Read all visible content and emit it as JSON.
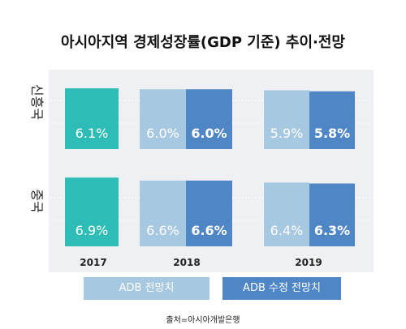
{
  "chart_data": {
    "type": "bar",
    "title": "아시아지역 경제성장률(GDP 기준) 추이·전망",
    "categories": [
      "2017",
      "2018",
      "2019"
    ],
    "panels": [
      {
        "name": "신흥국",
        "bars": [
          {
            "category": "2017",
            "series": "actual",
            "value": 6.1,
            "label": "6.1%"
          },
          {
            "category": "2018",
            "series": "ADB 전망치",
            "value": 6.0,
            "label": "6.0%"
          },
          {
            "category": "2018",
            "series": "ADB 수정 전망치",
            "value": 6.0,
            "label": "6.0%"
          },
          {
            "category": "2019",
            "series": "ADB 전망치",
            "value": 5.9,
            "label": "5.9%"
          },
          {
            "category": "2019",
            "series": "ADB 수정 전망치",
            "value": 5.8,
            "label": "5.8%"
          }
        ]
      },
      {
        "name": "중국",
        "bars": [
          {
            "category": "2017",
            "series": "actual",
            "value": 6.9,
            "label": "6.9%"
          },
          {
            "category": "2018",
            "series": "ADB 전망치",
            "value": 6.6,
            "label": "6.6%"
          },
          {
            "category": "2018",
            "series": "ADB 수정 전망치",
            "value": 6.6,
            "label": "6.6%"
          },
          {
            "category": "2019",
            "series": "ADB 전망치",
            "value": 6.4,
            "label": "6.4%"
          },
          {
            "category": "2019",
            "series": "ADB 수정 전망치",
            "value": 6.3,
            "label": "6.3%"
          }
        ]
      }
    ],
    "legend": [
      "ADB 전망치",
      "ADB 수정 전망치"
    ],
    "legend_position": "bottom",
    "colors": {
      "actual": "#2ebdb6",
      "ADB 전망치": "#a6c8e0",
      "ADB 수정 전망치": "#4f86c6"
    },
    "grid": true
  },
  "source": "출처=아시아개발은행"
}
